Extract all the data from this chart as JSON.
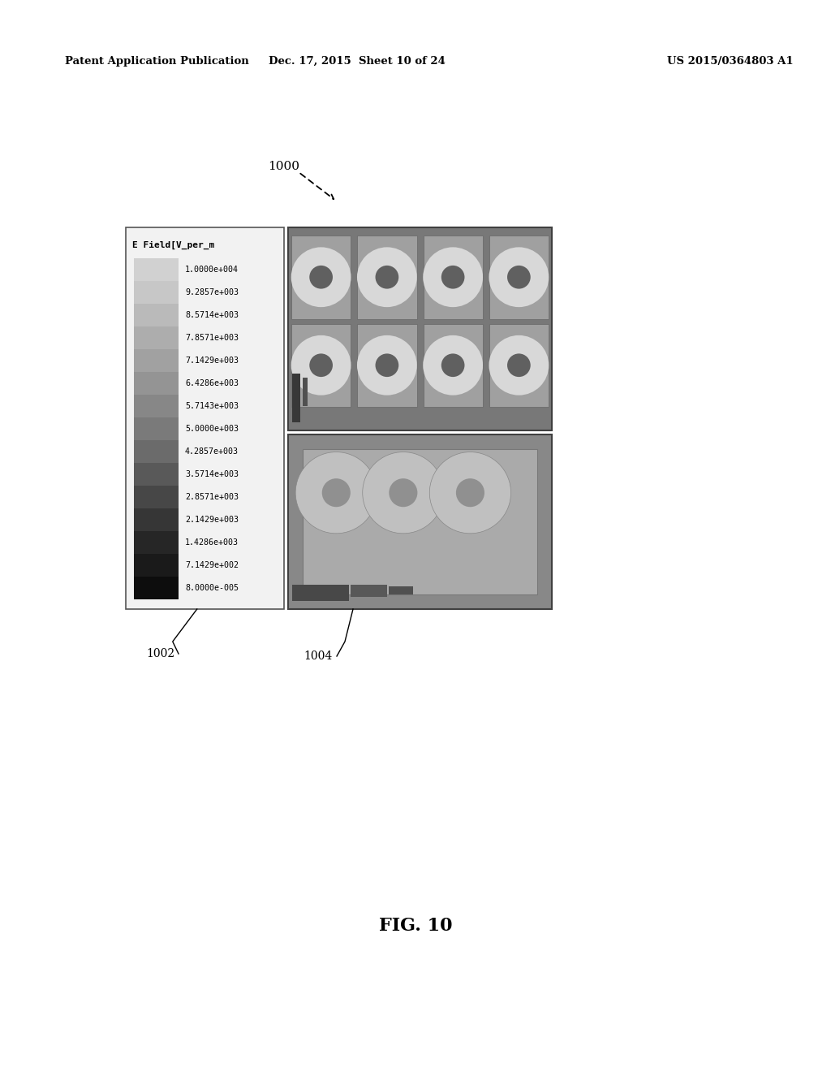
{
  "background_color": "#ffffff",
  "header_left": "Patent Application Publication",
  "header_center": "Dec. 17, 2015  Sheet 10 of 24",
  "header_right": "US 2015/0364803 A1",
  "fig_label": "FIG. 10",
  "ref_1000": "1000",
  "ref_1002": "1002",
  "ref_1004": "1004",
  "colorbar_title": "E Field[V_per_m",
  "colorbar_values": [
    "1.0000e+004",
    "9.2857e+003",
    "8.5714e+003",
    "7.8571e+003",
    "7.1429e+003",
    "6.4286e+003",
    "5.7143e+003",
    "5.0000e+003",
    "4.2857e+003",
    "3.5714e+003",
    "2.8571e+003",
    "2.1429e+003",
    "1.4286e+003",
    "7.1429e+002",
    "8.0000e-005"
  ],
  "colorbar_grays": [
    0.82,
    0.78,
    0.73,
    0.68,
    0.63,
    0.58,
    0.53,
    0.48,
    0.42,
    0.35,
    0.28,
    0.21,
    0.15,
    0.1,
    0.05
  ]
}
